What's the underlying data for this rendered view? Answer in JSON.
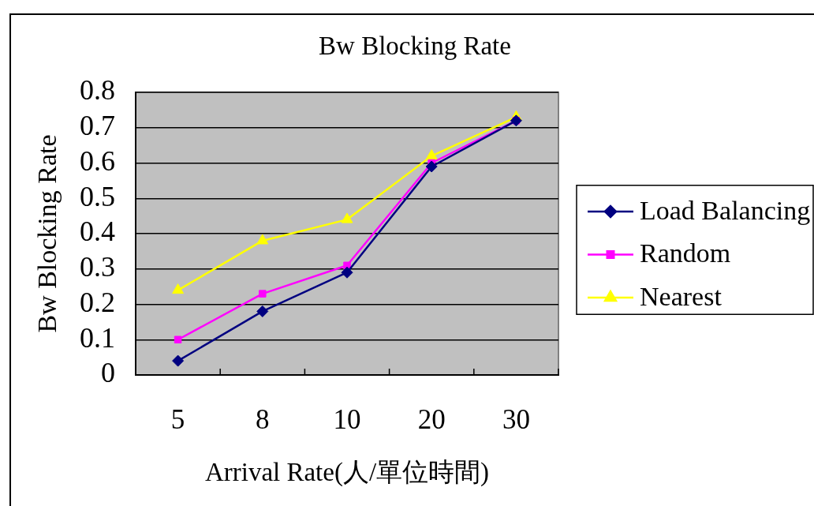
{
  "chart_data": {
    "type": "line",
    "title": "Bw Blocking Rate",
    "xlabel": "Arrival Rate(人/單位時間)",
    "ylabel": "Bw Blocking Rate",
    "categories": [
      "5",
      "8",
      "10",
      "20",
      "30"
    ],
    "series": [
      {
        "name": "Load Balancing",
        "color": "#000080",
        "marker": "diamond",
        "values": [
          0.04,
          0.18,
          0.29,
          0.59,
          0.72
        ]
      },
      {
        "name": "Random",
        "color": "#ff00ff",
        "marker": "square",
        "values": [
          0.1,
          0.23,
          0.31,
          0.6,
          0.72
        ]
      },
      {
        "name": "Nearest",
        "color": "#ffff00",
        "marker": "triangle",
        "values": [
          0.24,
          0.38,
          0.44,
          0.62,
          0.73
        ]
      }
    ],
    "ylim": [
      0,
      0.8
    ],
    "yticks": [
      0,
      0.1,
      0.2,
      0.3,
      0.4,
      0.5,
      0.6,
      0.7,
      0.8
    ],
    "grid": "y",
    "legend": "right",
    "line_style": "solid"
  }
}
